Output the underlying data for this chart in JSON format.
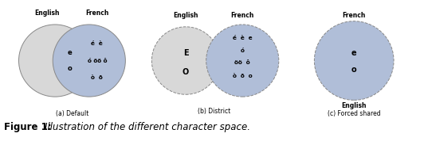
{
  "fig_width": 5.32,
  "fig_height": 1.78,
  "dpi": 100,
  "background_color": "#ffffff",
  "ellipse_gray_color": "#d8d8d8",
  "ellipse_blue_color": "#b0bed8",
  "ellipse_edge_color": "#888888",
  "subcaption_a": "(a) Default",
  "subcaption_b": "(b) District",
  "subcaption_c": "(c) Forced shared",
  "main_caption_bold": "Figure 1: ",
  "main_caption_italic": "Illustration of the different character space.",
  "label_english": "English",
  "label_french": "French",
  "a_overlap_text": [
    "e",
    "o"
  ],
  "a_french_text_lines": [
    "é  è",
    "ó öö ô",
    "ò  ō"
  ],
  "b_english_text": [
    "E",
    "O"
  ],
  "b_french_text_lines": [
    "é  è  e",
    "ó",
    "öö  ô",
    "ò  ō  o"
  ],
  "c_shared_text": [
    "e",
    "o"
  ]
}
